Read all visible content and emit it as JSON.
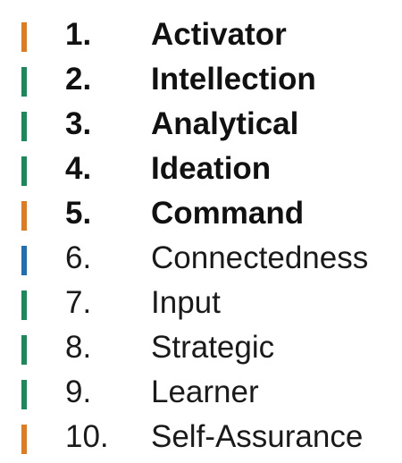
{
  "colors": {
    "orange": "#e07b1e",
    "green": "#1a8a5a",
    "blue": "#1f6fb5"
  },
  "strengths": [
    {
      "rank": "1.",
      "name": "Activator",
      "color": "orange",
      "bold": true
    },
    {
      "rank": "2.",
      "name": "Intellection",
      "color": "green",
      "bold": true
    },
    {
      "rank": "3.",
      "name": "Analytical",
      "color": "green",
      "bold": true
    },
    {
      "rank": "4.",
      "name": "Ideation",
      "color": "green",
      "bold": true
    },
    {
      "rank": "5.",
      "name": "Command",
      "color": "orange",
      "bold": true
    },
    {
      "rank": "6.",
      "name": "Connectedness",
      "color": "blue",
      "bold": false
    },
    {
      "rank": "7.",
      "name": "Input",
      "color": "green",
      "bold": false
    },
    {
      "rank": "8.",
      "name": "Strategic",
      "color": "green",
      "bold": false
    },
    {
      "rank": "9.",
      "name": "Learner",
      "color": "green",
      "bold": false
    },
    {
      "rank": "10.",
      "name": "Self-Assurance",
      "color": "orange",
      "bold": false
    }
  ]
}
